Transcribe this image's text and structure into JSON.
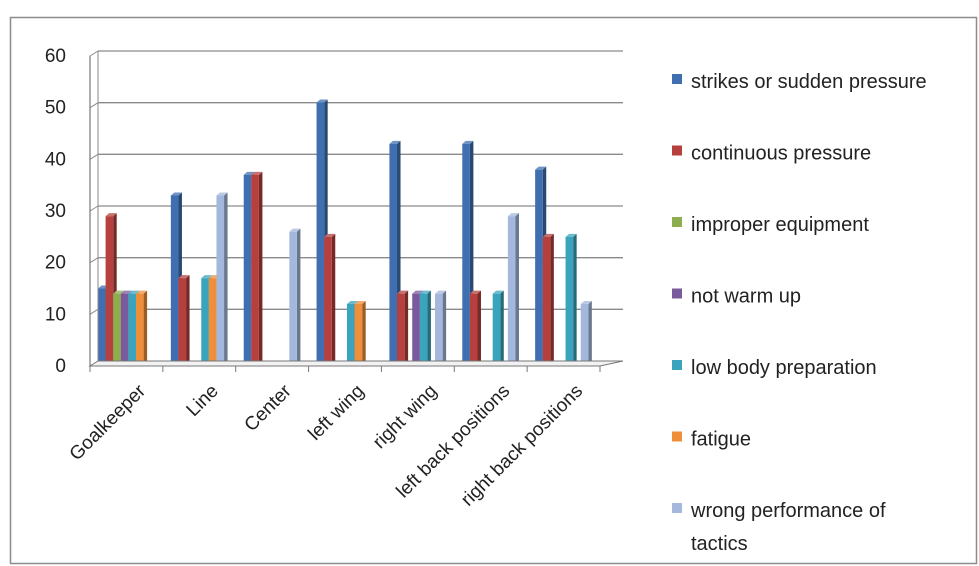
{
  "chart_data": {
    "type": "bar",
    "title": "",
    "xlabel": "",
    "ylabel": "",
    "ylim": [
      0,
      60
    ],
    "yticks": [
      0,
      10,
      20,
      30,
      40,
      50,
      60
    ],
    "grid": "horizontal",
    "style": "3d-bars",
    "legend_position": "right",
    "categories": [
      "Goalkeeper",
      "Line",
      "Center",
      "left wing",
      "right wing",
      "left back positions",
      "right back positions"
    ],
    "series": [
      {
        "name": "strikes or sudden pressure",
        "color": "#3f6fb0",
        "values": [
          15,
          33,
          37,
          51,
          43,
          43,
          38
        ]
      },
      {
        "name": " continuous pressure",
        "color": "#b5403d",
        "values": [
          29,
          17,
          37,
          25,
          14,
          14,
          25
        ]
      },
      {
        "name": " improper equipment",
        "color": "#8cae4f",
        "values": [
          14,
          0,
          0,
          0,
          0,
          0,
          0
        ]
      },
      {
        "name": "not warm up",
        "color": "#7a5a9c",
        "values": [
          14,
          0,
          0,
          0,
          14,
          0,
          0
        ]
      },
      {
        "name": "low body preparation",
        "color": "#3ba4bd",
        "values": [
          14,
          17,
          0,
          12,
          14,
          14,
          25
        ]
      },
      {
        "name": "fatigue",
        "color": "#ef8f3a",
        "values": [
          14,
          17,
          0,
          12,
          0,
          0,
          0
        ]
      },
      {
        "name": " wrong performance of tactics",
        "color": "#a3b8dc",
        "values": [
          0,
          33,
          26,
          0,
          14,
          29,
          12
        ]
      }
    ]
  }
}
